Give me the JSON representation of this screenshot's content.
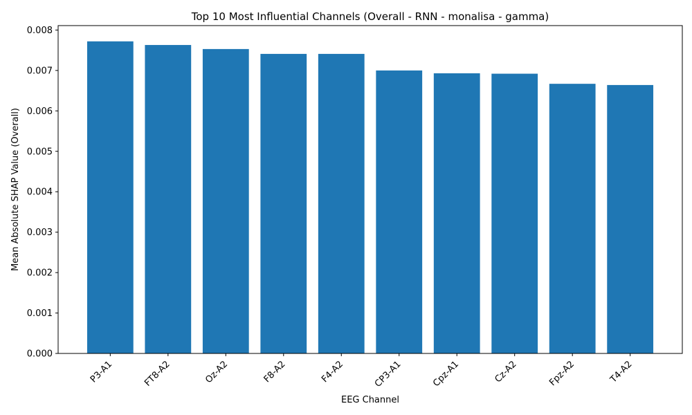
{
  "chart_data": {
    "type": "bar",
    "title": "Top 10 Most Influential Channels (Overall - RNN - monalisa - gamma)",
    "xlabel": "EEG Channel",
    "ylabel": "Mean Absolute SHAP Value (Overall)",
    "categories": [
      "P3-A1",
      "FT8-A2",
      "Oz-A2",
      "F8-A2",
      "F4-A2",
      "CP3-A1",
      "Cpz-A1",
      "Cz-A2",
      "Fpz-A2",
      "T4-A2"
    ],
    "values": [
      0.00772,
      0.00763,
      0.00753,
      0.00741,
      0.00741,
      0.007,
      0.00693,
      0.00692,
      0.00667,
      0.00664
    ],
    "ylim": [
      0,
      0.00811
    ],
    "yticks": [
      "0.000",
      "0.001",
      "0.002",
      "0.003",
      "0.004",
      "0.005",
      "0.006",
      "0.007",
      "0.008"
    ],
    "bar_color": "#1f77b4",
    "grid": false,
    "legend": "none"
  }
}
